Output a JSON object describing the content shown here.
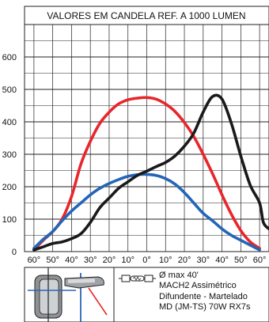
{
  "chart_data": {
    "type": "line",
    "title": "VALORES EM  CANDELA REF. A 1000 LUMEN",
    "x_ticks": [
      "60°",
      "50°",
      "40°",
      "30°",
      "20°",
      "10°",
      "0°",
      "10°",
      "20°",
      "30°",
      "40°",
      "50°",
      "60°"
    ],
    "y_ticks": [
      "0",
      "100",
      "200",
      "300",
      "400",
      "500",
      "600"
    ],
    "x_unit": "degrees",
    "xlim": [
      -65,
      65
    ],
    "ylim": [
      0,
      700
    ],
    "grid": true,
    "series": [
      {
        "color": "#e8262b",
        "x": [
          -60,
          -55,
          -50,
          -45,
          -40,
          -35,
          -30,
          -25,
          -20,
          -15,
          -10,
          -5,
          0,
          5,
          10,
          15,
          20,
          25,
          30,
          35,
          40,
          45,
          50,
          55,
          60
        ],
        "y": [
          5,
          35,
          62,
          100,
          170,
          270,
          340,
          395,
          430,
          455,
          468,
          473,
          475,
          470,
          455,
          432,
          398,
          355,
          300,
          240,
          175,
          115,
          65,
          30,
          10
        ]
      },
      {
        "color": "#2365b8",
        "x": [
          -60,
          -55,
          -50,
          -45,
          -40,
          -35,
          -30,
          -25,
          -20,
          -15,
          -10,
          -5,
          0,
          5,
          10,
          15,
          20,
          25,
          30,
          35,
          40,
          45,
          50,
          55,
          60
        ],
        "y": [
          10,
          38,
          62,
          95,
          125,
          150,
          175,
          195,
          210,
          222,
          232,
          237,
          238,
          235,
          225,
          208,
          182,
          150,
          118,
          95,
          70,
          50,
          35,
          20,
          5
        ]
      },
      {
        "color": "#1a1a1a",
        "x": [
          -60,
          -55,
          -50,
          -45,
          -40,
          -35,
          -30,
          -25,
          -20,
          -15,
          -10,
          -5,
          0,
          5,
          10,
          15,
          20,
          25,
          30,
          35,
          40,
          45,
          50,
          55,
          60,
          62,
          65
        ],
        "y": [
          5,
          15,
          25,
          30,
          40,
          55,
          90,
          135,
          165,
          195,
          215,
          235,
          248,
          262,
          275,
          295,
          325,
          365,
          430,
          478,
          470,
          395,
          295,
          205,
          150,
          90,
          70
        ]
      }
    ]
  },
  "info": {
    "lines": [
      "Ø max 40'",
      "MACH2 Assimétrico",
      "Difundente - Martelado",
      "MD (JM-TS) 70W RX7s"
    ]
  }
}
